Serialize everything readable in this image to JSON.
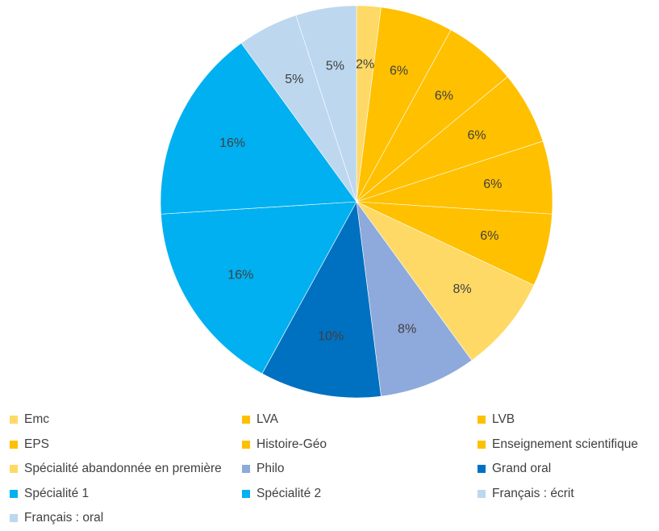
{
  "chart_data": {
    "type": "pie",
    "title": "",
    "legend_position": "bottom",
    "start_angle_deg": 0,
    "direction": "clockwise",
    "slices": [
      {
        "name": "Emc",
        "value": 2,
        "label": "2%",
        "color": "#FFD966"
      },
      {
        "name": "LVA",
        "value": 6,
        "label": "6%",
        "color": "#FFC000"
      },
      {
        "name": "LVB",
        "value": 6,
        "label": "6%",
        "color": "#FFC000"
      },
      {
        "name": "EPS",
        "value": 6,
        "label": "6%",
        "color": "#FFC000"
      },
      {
        "name": "Histoire-Géo",
        "value": 6,
        "label": "6%",
        "color": "#FFC000"
      },
      {
        "name": "Enseignement scientifique",
        "value": 6,
        "label": "6%",
        "color": "#FFC000"
      },
      {
        "name": "Spécialité abandonnée en première",
        "value": 8,
        "label": "8%",
        "color": "#FFD966"
      },
      {
        "name": "Philo",
        "value": 8,
        "label": "8%",
        "color": "#8EA9DB"
      },
      {
        "name": "Grand oral",
        "value": 10,
        "label": "10%",
        "color": "#0070C0"
      },
      {
        "name": "Spécialité 1",
        "value": 16,
        "label": "16%",
        "color": "#00B0F0"
      },
      {
        "name": "Spécialité 2",
        "value": 16,
        "label": "16%",
        "color": "#00B0F0"
      },
      {
        "name": "Français : écrit",
        "value": 5,
        "label": "5%",
        "color": "#BDD7EE"
      },
      {
        "name": "Français : oral",
        "value": 5,
        "label": "5%",
        "color": "#BDD7EE"
      }
    ]
  }
}
